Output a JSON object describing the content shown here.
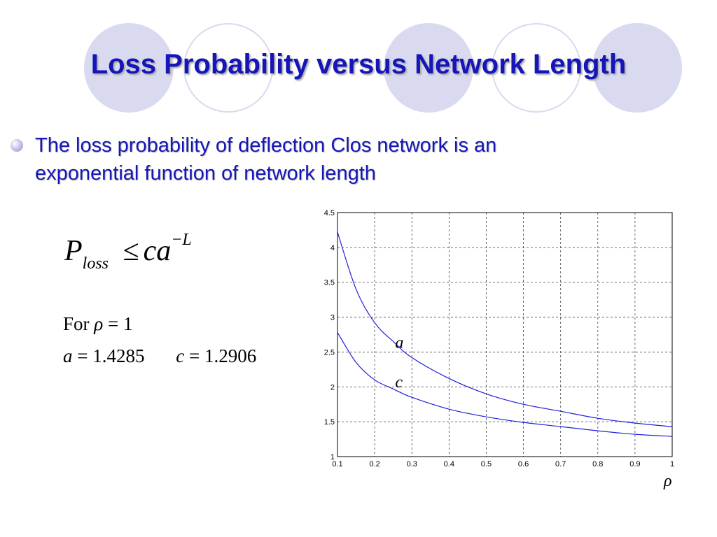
{
  "title": "Loss Probability versus Network Length",
  "bullet": {
    "line1": "The loss probability of deflection Clos network is an",
    "line2": "exponential function of network length"
  },
  "formula": {
    "p": "P",
    "p_sub": "loss",
    "rel": "≤",
    "ca": "ca",
    "exp": "−L"
  },
  "params": {
    "for_word": "For",
    "rho": "ρ",
    "rho_eq": "= 1",
    "a_sym": "a",
    "a_eq": "= 1.4285",
    "c_sym": "c",
    "c_eq": "= 1.2906"
  },
  "colors": {
    "title": "#1515b8",
    "decor": "#d9d9f0",
    "curve": "#2020dd"
  },
  "chart_data": {
    "type": "line",
    "xlabel": "ρ",
    "ylabel": "",
    "xlim": [
      0.1,
      1
    ],
    "ylim": [
      1,
      4.5
    ],
    "grid": true,
    "x_ticks": [
      "0.1",
      "0.2",
      "0.3",
      "0.4",
      "0.5",
      "0.6",
      "0.7",
      "0.8",
      "0.9",
      "1"
    ],
    "y_ticks": [
      "1",
      "1.5",
      "2",
      "2.5",
      "3",
      "3.5",
      "4",
      "4.5"
    ],
    "x": [
      0.1,
      0.15,
      0.2,
      0.25,
      0.3,
      0.4,
      0.5,
      0.6,
      0.7,
      0.8,
      0.9,
      1.0
    ],
    "series": [
      {
        "name": "a",
        "values": [
          4.22,
          3.4,
          2.92,
          2.65,
          2.42,
          2.12,
          1.9,
          1.75,
          1.65,
          1.55,
          1.48,
          1.43
        ]
      },
      {
        "name": "c",
        "values": [
          2.78,
          2.35,
          2.1,
          1.97,
          1.85,
          1.68,
          1.57,
          1.49,
          1.43,
          1.37,
          1.32,
          1.29
        ]
      }
    ]
  }
}
